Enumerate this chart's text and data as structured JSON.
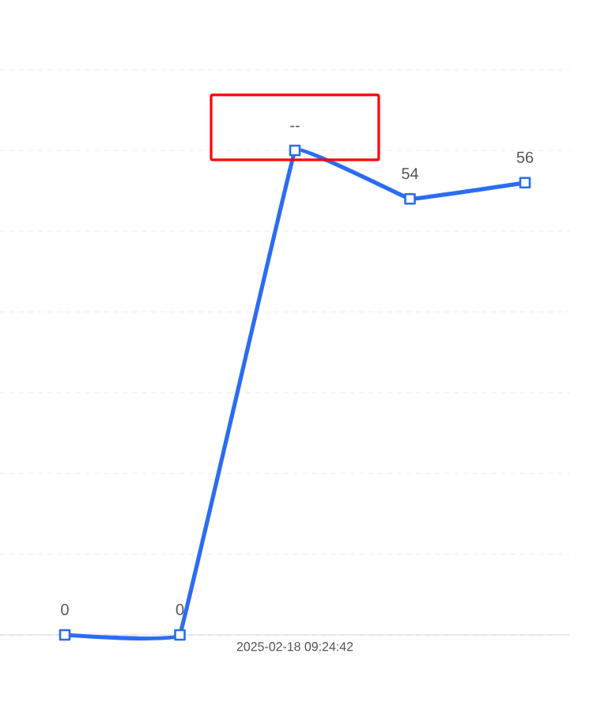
{
  "chart_data": {
    "type": "line",
    "categories": [
      null,
      null,
      null,
      null,
      null
    ],
    "annotations": [
      "2025-02-18 09:24:42"
    ],
    "series": [
      {
        "color": "#2b6cf2",
        "values": [
          0,
          0,
          60,
          54,
          56
        ],
        "value_labels": [
          "0",
          "0",
          "--",
          "54",
          "56"
        ]
      }
    ],
    "ylim": [
      0,
      70
    ],
    "yticks": [
      {
        "value": 0,
        "label": null
      },
      {
        "value": 10,
        "label": null
      },
      {
        "value": 20,
        "label": null
      },
      {
        "value": 30,
        "label": null
      },
      {
        "value": 40,
        "label": null
      },
      {
        "value": 50,
        "label": null
      },
      {
        "value": 60,
        "label": null
      },
      {
        "value": 70,
        "label": null
      }
    ],
    "grid": "y",
    "marker": "square",
    "line_style": "solid"
  }
}
